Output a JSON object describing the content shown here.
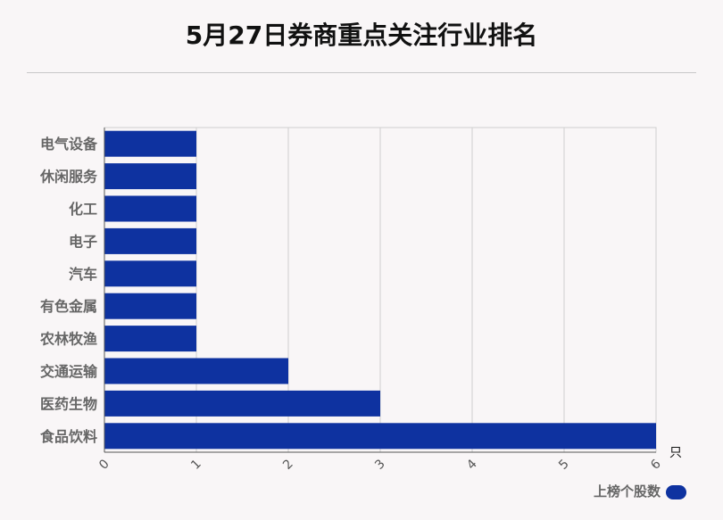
{
  "title": "5月27日券商重点关注行业排名",
  "chart_data": {
    "type": "bar",
    "orientation": "horizontal",
    "title": "5月27日券商重点关注行业排名",
    "categories": [
      "电气设备",
      "休闲服务",
      "化工",
      "电子",
      "汽车",
      "有色金属",
      "农林牧渔",
      "交通运输",
      "医药生物",
      "食品饮料"
    ],
    "series": [
      {
        "name": "上榜个股数",
        "values": [
          1,
          1,
          1,
          1,
          1,
          1,
          1,
          2,
          3,
          6
        ]
      }
    ],
    "xlim": [
      0,
      6
    ],
    "xticks": [
      "0",
      "1",
      "2",
      "3",
      "4",
      "5",
      "6"
    ],
    "xunit": "只",
    "grid": true,
    "legend": "bottom-right",
    "bar_color": "#0e32a0"
  },
  "legend": {
    "label": "上榜个股数"
  }
}
